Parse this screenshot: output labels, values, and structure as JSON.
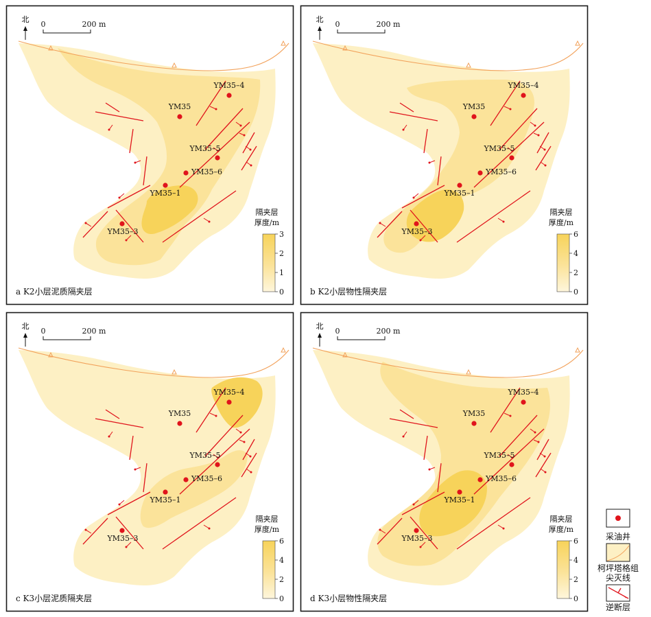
{
  "north_label": "北",
  "scale": {
    "zero": "0",
    "distance": "200 m"
  },
  "legend_title_lines": [
    "隔夹层",
    "厚度/m"
  ],
  "panels": [
    {
      "id": "a",
      "caption": "a K2小层泥质隔夹层",
      "ticks": [
        "3",
        "2",
        "1",
        "0"
      ],
      "max": 3
    },
    {
      "id": "b",
      "caption": "b K2小层物性隔夹层",
      "ticks": [
        "6",
        "4",
        "2",
        "0"
      ],
      "max": 6
    },
    {
      "id": "c",
      "caption": "c K3小层泥质隔夹层",
      "ticks": [
        "6",
        "4",
        "2",
        "0"
      ],
      "max": 6
    },
    {
      "id": "d",
      "caption": "d K3小层物性隔夹层",
      "ticks": [
        "6",
        "4",
        "2",
        "0"
      ],
      "max": 6
    }
  ],
  "wells": [
    {
      "name": "YM35–4"
    },
    {
      "name": "YM35"
    },
    {
      "name": "YM35–5"
    },
    {
      "name": "YM35–6"
    },
    {
      "name": "YM35–1"
    },
    {
      "name": "YM35–3"
    }
  ],
  "key": {
    "oil_well": "采油井",
    "pinchout_lines": [
      "柯坪塔格组",
      "尖灭线"
    ],
    "reverse_fault": "逆断层"
  },
  "colors": {
    "light": "#fdf0c4",
    "medium": "#fbe39a",
    "dark": "#f7d35a",
    "well": "#e0141c",
    "fault": "#e0141c",
    "pinchout": "#f2a15a",
    "frame": "#1a1a1a"
  }
}
